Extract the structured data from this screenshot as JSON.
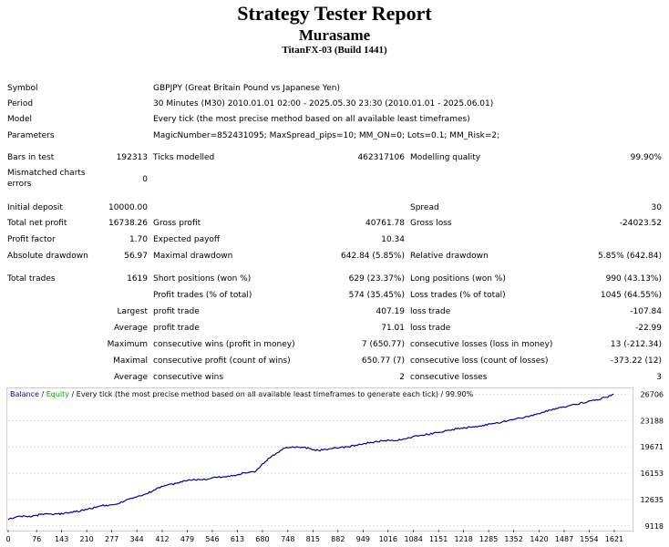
{
  "header": {
    "title": "Strategy Tester Report",
    "expert": "Murasame",
    "build": "TitanFX-03 (Build 1441)"
  },
  "info": {
    "symbol_label": "Symbol",
    "symbol_value": "GBPJPY (Great Britain Pound vs Japanese Yen)",
    "period_label": "Period",
    "period_value": "30 Minutes (M30) 2010.01.01 02:00 - 2025.05.30 23:30 (2010.01.01 - 2025.06.01)",
    "model_label": "Model",
    "model_value": "Every tick (the most precise method based on all available least timeframes)",
    "parameters_label": "Parameters",
    "parameters_value": "MagicNumber=852431095; MaxSpread_pips=10; MM_ON=0; Lots=0.1; MM_Risk=2;"
  },
  "stats": {
    "bars_label": "Bars in test",
    "bars_value": "192313",
    "ticks_label": "Ticks modelled",
    "ticks_value": "462317106",
    "quality_label": "Modelling quality",
    "quality_value": "99.90%",
    "mismatch_label": "Mismatched charts errors",
    "mismatch_value": "0",
    "initial_label": "Initial deposit",
    "initial_value": "10000.00",
    "spread_label": "Spread",
    "spread_value": "30",
    "net_label": "Total net profit",
    "net_value": "16738.26",
    "gross_profit_label": "Gross profit",
    "gross_profit_value": "40761.78",
    "gross_loss_label": "Gross loss",
    "gross_loss_value": "-24023.52",
    "pf_label": "Profit factor",
    "pf_value": "1.70",
    "payoff_label": "Expected payoff",
    "payoff_value": "10.34",
    "abs_dd_label": "Absolute drawdown",
    "abs_dd_value": "56.97",
    "max_dd_label": "Maximal drawdown",
    "max_dd_value": "642.84 (5.85%)",
    "rel_dd_label": "Relative drawdown",
    "rel_dd_value": "5.85% (642.84)",
    "trades_label": "Total trades",
    "trades_value": "1619",
    "short_label": "Short positions (won %)",
    "short_value": "629 (23.37%)",
    "long_label": "Long positions (won %)",
    "long_value": "990 (43.13%)",
    "profit_trades_label": "Profit trades (% of total)",
    "profit_trades_value": "574 (35.45%)",
    "loss_trades_label": "Loss trades (% of total)",
    "loss_trades_value": "1045 (64.55%)",
    "largest_label": "Largest",
    "largest_profit_label": "profit trade",
    "largest_profit_value": "407.19",
    "largest_loss_label": "loss trade",
    "largest_loss_value": "-107.84",
    "average_label": "Average",
    "average_profit_label": "profit trade",
    "average_profit_value": "71.01",
    "average_loss_label": "loss trade",
    "average_loss_value": "-22.99",
    "maximum_label": "Maximum",
    "max_wins_label": "consecutive wins (profit in money)",
    "max_wins_value": "7 (650.77)",
    "max_losses_label": "consecutive losses (loss in money)",
    "max_losses_value": "13 (-212.34)",
    "maximal_label": "Maximal",
    "maximal_profit_label": "consecutive profit (count of wins)",
    "maximal_profit_value": "650.77 (7)",
    "maximal_loss_label": "consecutive loss (count of losses)",
    "maximal_loss_value": "-373.22 (12)",
    "average2_label": "Average",
    "avg_wins_label": "consecutive wins",
    "avg_wins_value": "2",
    "avg_losses_label": "consecutive losses",
    "avg_losses_value": "3"
  },
  "legend": {
    "balance": "Balance",
    "sep1": " / ",
    "equity": "Equity",
    "desc": " / Every tick (the most precise method based on all available least timeframes to generate each tick) / 99.90%"
  },
  "colors": {
    "balance": "#0000a0",
    "equity": "#00a000",
    "grid": "#c8c8c8"
  },
  "chart_data": {
    "type": "line",
    "title": "Balance / Equity",
    "xlabel": "",
    "ylabel": "",
    "xlim": [
      0,
      1665
    ],
    "ylim": [
      8600,
      27500
    ],
    "x_ticks": [
      0,
      76,
      143,
      210,
      277,
      344,
      412,
      479,
      546,
      613,
      680,
      748,
      815,
      882,
      949,
      1016,
      1084,
      1151,
      1218,
      1285,
      1352,
      1420,
      1487,
      1554,
      1621
    ],
    "y_ticks": [
      9118,
      12635,
      16153,
      19671,
      23188,
      26706
    ],
    "series": [
      {
        "name": "Balance",
        "x": [
          0,
          30,
          60,
          90,
          120,
          150,
          180,
          210,
          250,
          290,
          330,
          370,
          410,
          450,
          480,
          520,
          560,
          600,
          630,
          660,
          680,
          700,
          720,
          740,
          760,
          790,
          830,
          870,
          910,
          950,
          1000,
          1050,
          1100,
          1150,
          1200,
          1250,
          1300,
          1350,
          1400,
          1450,
          1500,
          1550,
          1600,
          1619
        ],
        "values": [
          9950,
          10400,
          10300,
          10700,
          10600,
          10800,
          11000,
          11300,
          11800,
          12000,
          12800,
          13400,
          14400,
          14800,
          15200,
          15300,
          15600,
          15800,
          16200,
          16300,
          17400,
          18200,
          18900,
          19500,
          19700,
          19600,
          19200,
          19500,
          19700,
          20100,
          20500,
          20600,
          21200,
          21600,
          22100,
          22400,
          22800,
          23300,
          23900,
          24600,
          25200,
          25700,
          26300,
          26738
        ]
      }
    ]
  }
}
